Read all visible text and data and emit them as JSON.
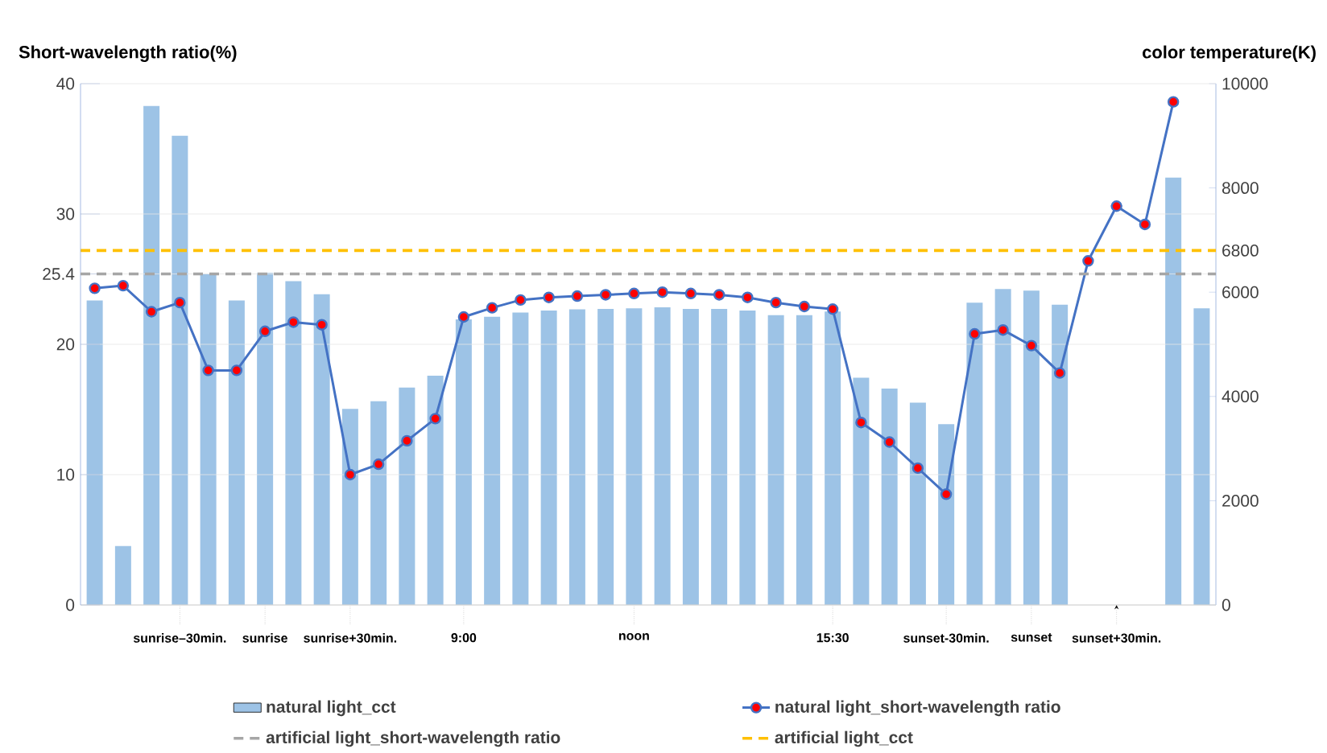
{
  "chart_data": {
    "type": "bar",
    "ylabel": "Short-wavelength ratio(%)",
    "y2label": "color temperature(K)",
    "categories": [
      null,
      null,
      null,
      "sunrise–30min.",
      null,
      null,
      "sunrise",
      null,
      null,
      "sunrise+30min.",
      null,
      null,
      null,
      "9:00",
      null,
      null,
      null,
      null,
      null,
      "noon",
      null,
      null,
      null,
      null,
      null,
      null,
      "15:30",
      null,
      null,
      null,
      "sunset-30min.",
      null,
      null,
      "sunset",
      null,
      null,
      "sunset+30min.",
      null,
      null,
      null
    ],
    "series": [
      {
        "name": "natural light_cct",
        "axis": "y2",
        "color": "#9dc3e6",
        "values": [
          5840,
          1130,
          9570,
          9000,
          6350,
          5840,
          6370,
          6210,
          5960,
          3760,
          3910,
          4170,
          4400,
          5480,
          5530,
          5610,
          5650,
          5670,
          5680,
          5690,
          5710,
          5680,
          5680,
          5650,
          5560,
          5560,
          5630,
          4360,
          4150,
          3880,
          3470,
          5800,
          6060,
          6030,
          5760,
          null,
          null,
          null,
          8200,
          5690
        ]
      },
      {
        "name": "natural light_short-wavelength ratio",
        "type": "line",
        "axis": "y",
        "color": "#4472c4",
        "values": [
          24.3,
          24.5,
          22.5,
          23.2,
          18.0,
          18.0,
          21.0,
          21.7,
          21.5,
          10.0,
          10.8,
          12.6,
          14.3,
          22.1,
          22.8,
          23.4,
          23.6,
          23.7,
          23.8,
          23.9,
          24.0,
          23.9,
          23.8,
          23.6,
          23.2,
          22.9,
          22.7,
          14.0,
          12.5,
          10.5,
          8.5,
          20.8,
          21.1,
          19.9,
          17.8,
          26.4,
          30.6,
          29.2,
          38.6,
          null
        ]
      }
    ],
    "ylim": [
      0,
      40
    ],
    "yticks": [
      0,
      10,
      20,
      25.4,
      30,
      40
    ],
    "y2lim": [
      0,
      10000
    ],
    "y2ticks": [
      0,
      2000,
      4000,
      6000,
      6800,
      8000,
      10000
    ],
    "ref_lines": [
      {
        "axis": "y",
        "value": 25.4,
        "label": "artificial light_short-wavelength ratio",
        "color": "#a6a6a6",
        "line_style": "dashed"
      },
      {
        "axis": "y2",
        "value": 6800,
        "label": "artificial light_cct",
        "color": "#ffc000",
        "line_style": "dashed"
      }
    ],
    "grid": "y",
    "legend": "bottom",
    "marker": "circle",
    "line_style": "solid"
  }
}
